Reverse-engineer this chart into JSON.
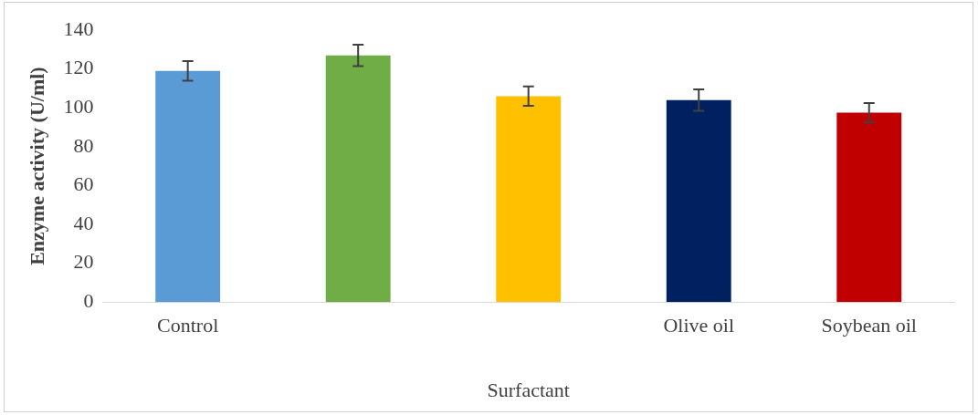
{
  "chart_data": {
    "type": "bar",
    "xlabel": "Surfactant",
    "ylabel": "Enzyme activity (U/ml)",
    "categories": [
      "Control",
      null,
      null,
      "Olive oil",
      "Soybean oil"
    ],
    "values": [
      119,
      127,
      106,
      104,
      97.5
    ],
    "errors": [
      5,
      5.5,
      5,
      5.5,
      5
    ],
    "colors": [
      "#5b9bd5",
      "#70ad47",
      "#ffc000",
      "#002060",
      "#c00000"
    ],
    "ylim": [
      0,
      140
    ],
    "yticks": [
      0,
      20,
      40,
      60,
      80,
      100,
      120,
      140
    ],
    "grid": false,
    "legend": false
  }
}
